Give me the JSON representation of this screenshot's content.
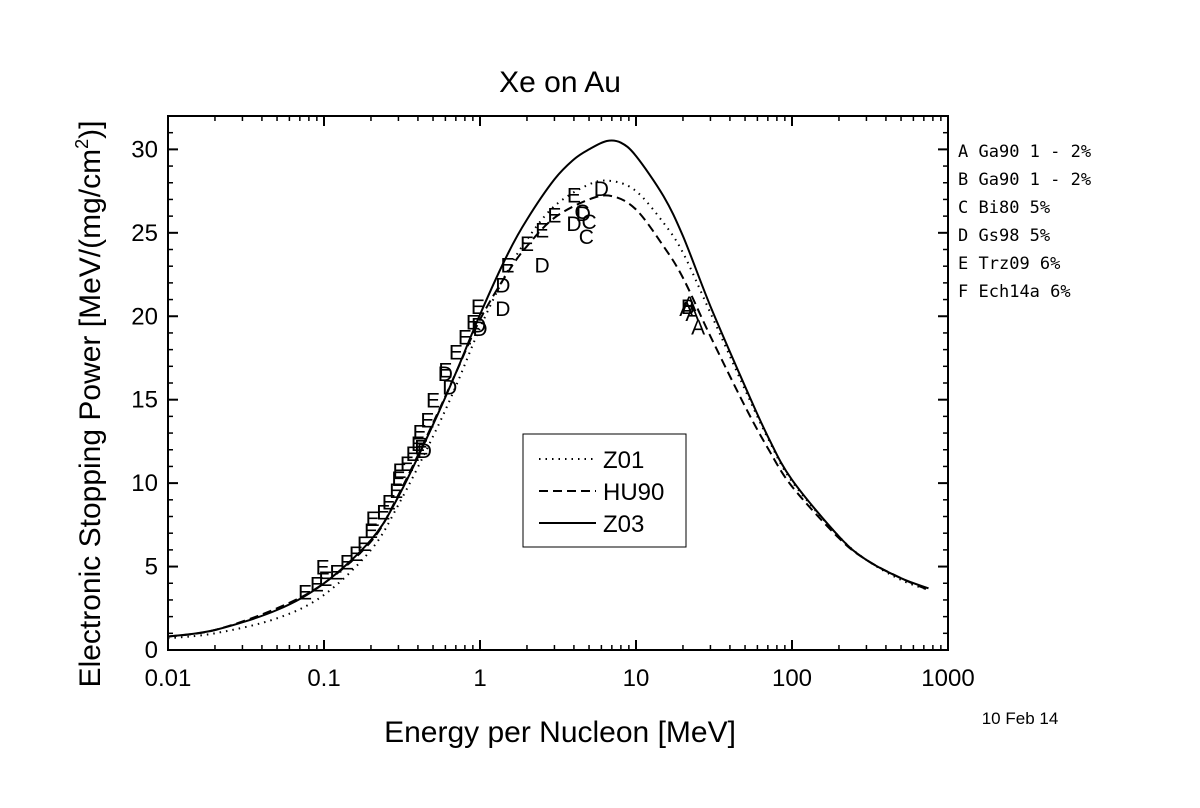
{
  "chart_data": {
    "type": "line",
    "title": "Xe on Au",
    "xlabel": "Energy per Nucleon [MeV]",
    "ylabel_main": "Electronic Stopping Power [MeV/(mg/cm",
    "ylabel_sup": "2",
    "ylabel_end": ")]",
    "x_scale": "log",
    "xlim": [
      0.01,
      1000
    ],
    "ylim": [
      0,
      32
    ],
    "x_ticks": [
      {
        "value": 0.01,
        "label": "0.01"
      },
      {
        "value": 0.1,
        "label": "0.1"
      },
      {
        "value": 1,
        "label": "1"
      },
      {
        "value": 10,
        "label": "10"
      },
      {
        "value": 100,
        "label": "100"
      },
      {
        "value": 1000,
        "label": "1000"
      }
    ],
    "y_ticks": [
      {
        "value": 0,
        "label": "0"
      },
      {
        "value": 5,
        "label": "5"
      },
      {
        "value": 10,
        "label": "10"
      },
      {
        "value": 15,
        "label": "15"
      },
      {
        "value": 20,
        "label": "20"
      },
      {
        "value": 25,
        "label": "25"
      },
      {
        "value": 30,
        "label": "30"
      }
    ],
    "grid": false,
    "legend_position": "center-bottom",
    "series": [
      {
        "name": "Z01",
        "style": "dotted",
        "x": [
          0.01,
          0.02,
          0.05,
          0.1,
          0.2,
          0.3,
          0.5,
          0.7,
          1,
          1.5,
          2,
          3,
          5,
          7,
          10,
          15,
          20,
          30,
          50,
          70,
          100,
          200,
          300,
          500,
          750
        ],
        "y": [
          0.7,
          1.0,
          1.9,
          3.3,
          6.0,
          8.7,
          12.8,
          15.8,
          19.3,
          22.7,
          24.6,
          26.6,
          27.9,
          28.1,
          27.5,
          25.6,
          23.8,
          20.2,
          15.6,
          12.7,
          10.1,
          6.8,
          5.4,
          4.2,
          3.6
        ]
      },
      {
        "name": "HU90",
        "style": "dashed",
        "x": [
          0.01,
          0.02,
          0.05,
          0.1,
          0.2,
          0.3,
          0.5,
          0.7,
          1,
          1.5,
          2,
          3,
          5,
          7,
          10,
          15,
          20,
          30,
          50,
          70,
          100,
          200,
          300,
          500,
          750
        ],
        "y": [
          0.8,
          1.2,
          2.5,
          4.0,
          6.5,
          9.3,
          13.6,
          16.6,
          19.8,
          22.6,
          24.2,
          25.9,
          27.0,
          27.2,
          26.4,
          24.2,
          22.3,
          18.8,
          14.6,
          12.1,
          9.8,
          6.7,
          5.4,
          4.3,
          3.6
        ]
      },
      {
        "name": "Z03",
        "style": "solid",
        "x": [
          0.01,
          0.02,
          0.05,
          0.1,
          0.2,
          0.3,
          0.5,
          0.7,
          1,
          1.5,
          2,
          3,
          4,
          5,
          6.5,
          8,
          10,
          15,
          20,
          30,
          50,
          70,
          100,
          200,
          300,
          500,
          750
        ],
        "y": [
          0.8,
          1.2,
          2.4,
          4.0,
          6.6,
          9.2,
          13.5,
          16.6,
          20.1,
          23.7,
          25.8,
          28.2,
          29.4,
          30.0,
          30.5,
          30.4,
          29.6,
          27.2,
          24.8,
          20.6,
          15.8,
          12.8,
          10.2,
          6.8,
          5.4,
          4.3,
          3.7
        ]
      }
    ],
    "points": [
      {
        "label": "E",
        "x": 0.0755,
        "y": 3.5
      },
      {
        "label": "E",
        "x": 0.09,
        "y": 4.0
      },
      {
        "label": "E",
        "x": 0.098,
        "y": 5.0
      },
      {
        "label": "E",
        "x": 0.102,
        "y": 4.3
      },
      {
        "label": "E",
        "x": 0.12,
        "y": 4.7
      },
      {
        "label": "E",
        "x": 0.14,
        "y": 5.3
      },
      {
        "label": "E",
        "x": 0.16,
        "y": 5.8
      },
      {
        "label": "E",
        "x": 0.18,
        "y": 6.4
      },
      {
        "label": "E",
        "x": 0.2,
        "y": 7.2
      },
      {
        "label": "E",
        "x": 0.205,
        "y": 7.9
      },
      {
        "label": "E",
        "x": 0.24,
        "y": 8.3
      },
      {
        "label": "E",
        "x": 0.26,
        "y": 8.9
      },
      {
        "label": "E",
        "x": 0.29,
        "y": 9.6
      },
      {
        "label": "E",
        "x": 0.3,
        "y": 10.3
      },
      {
        "label": "E",
        "x": 0.305,
        "y": 10.8
      },
      {
        "label": "E",
        "x": 0.34,
        "y": 11.2
      },
      {
        "label": "E",
        "x": 0.37,
        "y": 11.8
      },
      {
        "label": "E",
        "x": 0.4,
        "y": 12.4
      },
      {
        "label": "E",
        "x": 0.41,
        "y": 13.1
      },
      {
        "label": "E",
        "x": 0.42,
        "y": 12.2
      },
      {
        "label": "D",
        "x": 0.44,
        "y": 12.0
      },
      {
        "label": "E",
        "x": 0.46,
        "y": 13.8
      },
      {
        "label": "E",
        "x": 0.5,
        "y": 15.0
      },
      {
        "label": "E",
        "x": 0.6,
        "y": 16.8
      },
      {
        "label": "D",
        "x": 0.6,
        "y": 16.6
      },
      {
        "label": "D",
        "x": 0.64,
        "y": 15.8
      },
      {
        "label": "E",
        "x": 0.7,
        "y": 17.9
      },
      {
        "label": "E",
        "x": 0.8,
        "y": 18.8
      },
      {
        "label": "E",
        "x": 0.9,
        "y": 19.7
      },
      {
        "label": "E",
        "x": 0.97,
        "y": 20.6
      },
      {
        "label": "D",
        "x": 0.98,
        "y": 19.5
      },
      {
        "label": "D",
        "x": 1.0,
        "y": 19.3
      },
      {
        "label": "D",
        "x": 1.4,
        "y": 20.5
      },
      {
        "label": "D",
        "x": 1.4,
        "y": 21.9
      },
      {
        "label": "E",
        "x": 1.5,
        "y": 23.1
      },
      {
        "label": "E",
        "x": 2.0,
        "y": 24.4
      },
      {
        "label": "D",
        "x": 2.5,
        "y": 23.1
      },
      {
        "label": "E",
        "x": 2.5,
        "y": 25.2
      },
      {
        "label": "E",
        "x": 3.0,
        "y": 26.1
      },
      {
        "label": "E",
        "x": 4.0,
        "y": 27.3
      },
      {
        "label": "D",
        "x": 4.0,
        "y": 25.6
      },
      {
        "label": "C",
        "x": 4.5,
        "y": 26.3
      },
      {
        "label": "D",
        "x": 4.6,
        "y": 26.2
      },
      {
        "label": "C",
        "x": 4.8,
        "y": 24.8
      },
      {
        "label": "C",
        "x": 5.0,
        "y": 25.7
      },
      {
        "label": "D",
        "x": 6.0,
        "y": 27.7
      },
      {
        "label": "A",
        "x": 21.0,
        "y": 20.5
      },
      {
        "label": "B",
        "x": 21.5,
        "y": 20.6
      },
      {
        "label": "A",
        "x": 22.0,
        "y": 20.8
      },
      {
        "label": "A",
        "x": 23.0,
        "y": 20.2
      },
      {
        "label": "A",
        "x": 25.0,
        "y": 19.4
      }
    ],
    "references": [
      {
        "letter": "A",
        "text": "Ga90  1 - 2%"
      },
      {
        "letter": "B",
        "text": "Ga90  1 - 2%"
      },
      {
        "letter": "C",
        "text": "Bi80  5%"
      },
      {
        "letter": "D",
        "text": "Gs98  5%"
      },
      {
        "letter": "E",
        "text": "Trz09 6%"
      },
      {
        "letter": "F",
        "text": "Ech14a 6%"
      }
    ],
    "date_stamp": "10 Feb 14"
  }
}
